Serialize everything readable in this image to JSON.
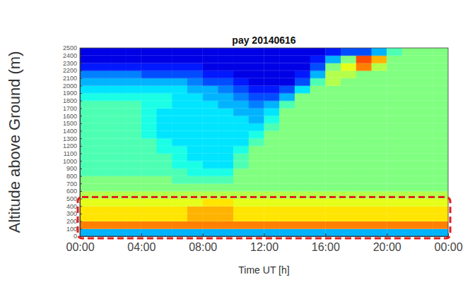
{
  "chart_data": {
    "type": "heatmap",
    "title": "pay 20140616",
    "x_label": "Time UT [h]",
    "y_label": "Altitude above Ground (m)",
    "x": [
      0,
      1,
      2,
      3,
      4,
      5,
      6,
      7,
      8,
      9,
      10,
      11,
      12,
      13,
      14,
      15,
      16,
      17,
      18,
      19,
      20,
      21,
      22,
      23,
      24
    ],
    "y": [
      0,
      100,
      200,
      300,
      400,
      500,
      600,
      700,
      800,
      900,
      1000,
      1100,
      1200,
      1300,
      1400,
      1500,
      1600,
      1700,
      1800,
      1900,
      2000,
      2100,
      2200,
      2300,
      2400,
      2500
    ],
    "z": [
      [
        3,
        3,
        3,
        3,
        3,
        3,
        3,
        3,
        3,
        3,
        3,
        3,
        3,
        3,
        3,
        3,
        3,
        3,
        3,
        3,
        3,
        3,
        3,
        3
      ],
      [
        7.5,
        7.5,
        7.5,
        7.5,
        7.5,
        7.5,
        7.5,
        7.5,
        7.5,
        7.5,
        7.5,
        7.5,
        7.5,
        7.5,
        7.5,
        7.5,
        7.5,
        7.5,
        7.5,
        7.5,
        7.5,
        7.5,
        7.5,
        7.5
      ],
      [
        6.5,
        6.5,
        6.5,
        6.5,
        6.5,
        6.5,
        6.5,
        7,
        7,
        7,
        6.5,
        6.5,
        6.5,
        6.5,
        6.5,
        6.5,
        6.5,
        6.5,
        6.5,
        6.5,
        6.5,
        6.5,
        6.5,
        6.5
      ],
      [
        6.5,
        6.5,
        6.5,
        6.5,
        6.5,
        6.5,
        6.5,
        7,
        7,
        7,
        6.5,
        6.5,
        6.5,
        6.5,
        6.5,
        6.5,
        6.5,
        6.5,
        6.5,
        6.5,
        6.5,
        6.5,
        6.5,
        6.5
      ],
      [
        6,
        6,
        6,
        6,
        6,
        6,
        6,
        6,
        6.5,
        6.5,
        6,
        6,
        6,
        6,
        6,
        6,
        6,
        6,
        6,
        6,
        6,
        6,
        6,
        6
      ],
      [
        5.5,
        5.5,
        5.5,
        5.5,
        5.5,
        5.5,
        5.5,
        5.5,
        5.5,
        5.5,
        5.5,
        5.5,
        5.5,
        5.5,
        5.5,
        5.5,
        5.5,
        5.5,
        5.5,
        5.5,
        5.5,
        5.5,
        5.5,
        5.5
      ],
      [
        5,
        5,
        5,
        5,
        5,
        5,
        5,
        5,
        5,
        5,
        5,
        5,
        5,
        5,
        5,
        5,
        5,
        5,
        5,
        5,
        5,
        5,
        5,
        5
      ],
      [
        5,
        5,
        5,
        5,
        5,
        5,
        4.5,
        4.5,
        4.5,
        4.5,
        5,
        5,
        5,
        5,
        5,
        5,
        5,
        5,
        5,
        5,
        5,
        5,
        5,
        5
      ],
      [
        4.5,
        4.5,
        4.5,
        4.5,
        4.5,
        4.5,
        4.5,
        4,
        4,
        4,
        5,
        5,
        5,
        5,
        5,
        5,
        5,
        5,
        5,
        5,
        5,
        5,
        5,
        5
      ],
      [
        4.5,
        4.5,
        4.5,
        4.5,
        4.5,
        4.5,
        4,
        4,
        3.5,
        3.5,
        4.5,
        5,
        5,
        5,
        5,
        5,
        5,
        5,
        5,
        5,
        5,
        5,
        5,
        5
      ],
      [
        4.5,
        4.5,
        4.5,
        4.5,
        4.5,
        4.5,
        4,
        3.5,
        3.5,
        3.5,
        4.5,
        5,
        5,
        5,
        5,
        5,
        5,
        5,
        5,
        5,
        5,
        5,
        5,
        5
      ],
      [
        4.5,
        4.5,
        4.5,
        4.5,
        4.5,
        4,
        4,
        3.5,
        3.5,
        3.5,
        4,
        5,
        5,
        5,
        5,
        5,
        5,
        5,
        5,
        5,
        5,
        5,
        5,
        5
      ],
      [
        4.5,
        4.5,
        4.5,
        4.5,
        4.5,
        4,
        3.5,
        3.5,
        3.5,
        3.5,
        3.5,
        4.5,
        5,
        5,
        5,
        5,
        5,
        5,
        5,
        5,
        5,
        5,
        5,
        5
      ],
      [
        4.5,
        4.5,
        4.5,
        4.5,
        4,
        3.5,
        3.5,
        3.5,
        3.5,
        3.5,
        3.5,
        4,
        5,
        5,
        5,
        5,
        5,
        5,
        5,
        5,
        5,
        5,
        5,
        5
      ],
      [
        4.5,
        4.5,
        4.5,
        4.5,
        4,
        3.5,
        3.5,
        3.5,
        3.5,
        3.5,
        3.5,
        3.5,
        4.5,
        5,
        5,
        5,
        5,
        5,
        5,
        5,
        5,
        5,
        5,
        5
      ],
      [
        4.5,
        4.5,
        4.5,
        4.5,
        4,
        3.5,
        3.5,
        3.5,
        3.5,
        3.5,
        3.5,
        3,
        4,
        5,
        5,
        5,
        5,
        5,
        5,
        5,
        5,
        5,
        5,
        5
      ],
      [
        4.5,
        4.5,
        4.5,
        4.5,
        4,
        3.5,
        3.5,
        3.5,
        3.5,
        3.5,
        3,
        3,
        3.5,
        5,
        5,
        5,
        5,
        5,
        5,
        5,
        5,
        5,
        5,
        5
      ],
      [
        4.5,
        4.5,
        4.5,
        4.5,
        4,
        4,
        3.5,
        3.5,
        3.5,
        3,
        3,
        2.5,
        3,
        4.5,
        5,
        5,
        5,
        5,
        5,
        5,
        5,
        5,
        5,
        5
      ],
      [
        4,
        4,
        4,
        4,
        4,
        4,
        3.5,
        3.5,
        3,
        3,
        2.5,
        2,
        2,
        3,
        5,
        5,
        5,
        5,
        5,
        5,
        5,
        5,
        5,
        5
      ],
      [
        3.5,
        3.5,
        3.5,
        3.5,
        3.5,
        3.5,
        3.5,
        3,
        3,
        2.5,
        2,
        1.5,
        1.5,
        2,
        3.5,
        5,
        5,
        5,
        5,
        5,
        5,
        5,
        5,
        5
      ],
      [
        3,
        3,
        3,
        3,
        3,
        3,
        3,
        2.5,
        2,
        2,
        1.5,
        1,
        1,
        1,
        2,
        4.5,
        5.5,
        5,
        5,
        5,
        5,
        5,
        5,
        5
      ],
      [
        2.5,
        2.5,
        2.5,
        2.5,
        2,
        2,
        2,
        2,
        1.5,
        1.5,
        1,
        1,
        1,
        1,
        1.5,
        3,
        5.5,
        5.5,
        5,
        5,
        5,
        5,
        5,
        5
      ],
      [
        1.5,
        1.5,
        1.5,
        1.5,
        1.5,
        1.5,
        1.5,
        1.5,
        1,
        1,
        1,
        1,
        1,
        1,
        1,
        2,
        5,
        6,
        7.5,
        5.5,
        5,
        5,
        5,
        5
      ],
      [
        1,
        1,
        1,
        1,
        1,
        1,
        1,
        1,
        1,
        1,
        1,
        1,
        1,
        1,
        1,
        1.5,
        3,
        5,
        8,
        7,
        5,
        5,
        5,
        5
      ],
      [
        1,
        1,
        1,
        1,
        1,
        1,
        1,
        1,
        1,
        1,
        1,
        1,
        1,
        1,
        1,
        1,
        1.5,
        2,
        2,
        3,
        4.5,
        5,
        5,
        5
      ]
    ],
    "zlim": [
      0,
      10
    ],
    "xlim": [
      0,
      24
    ],
    "ylim": [
      0,
      2500
    ],
    "xticks": [
      {
        "value": 0,
        "label": "00:00"
      },
      {
        "value": 4,
        "label": "04:00"
      },
      {
        "value": 8,
        "label": "08:00"
      },
      {
        "value": 12,
        "label": "12:00"
      },
      {
        "value": 16,
        "label": "16:00"
      },
      {
        "value": 20,
        "label": "20:00"
      },
      {
        "value": 24,
        "label": "00:00"
      }
    ],
    "yticks": [
      0,
      100,
      200,
      300,
      400,
      500,
      600,
      700,
      800,
      900,
      1000,
      1100,
      1200,
      1300,
      1400,
      1500,
      1600,
      1700,
      1800,
      1900,
      2000,
      2100,
      2200,
      2300,
      2400,
      2500
    ],
    "grid": true,
    "highlight": {
      "x": [
        0,
        24
      ],
      "y": [
        0,
        520
      ]
    }
  }
}
